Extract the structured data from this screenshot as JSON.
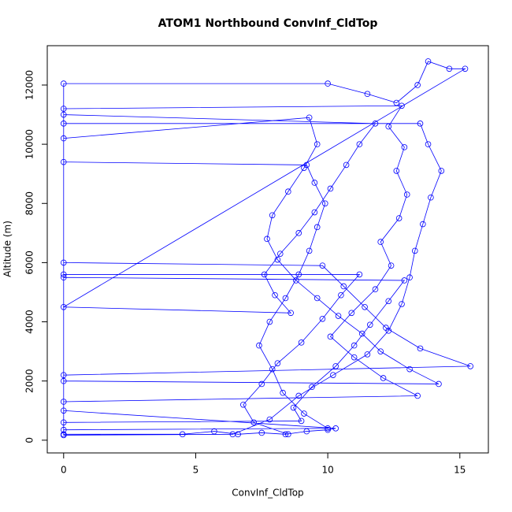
{
  "chart_data": {
    "type": "line",
    "title": "ATOM1 Northbound ConvInf_CldTop",
    "x_label": "ConvInf_CldTop",
    "y_label": "Altitude (m)",
    "color": "#0000ff",
    "markers": true,
    "xlim": [
      -0.62,
      16.08
    ],
    "ylim": [
      -430,
      13330
    ],
    "xticks": [
      0,
      5,
      10,
      15
    ],
    "yticks": [
      0,
      2000,
      4000,
      6000,
      8000,
      10000,
      12000
    ],
    "x": [
      8.5,
      7.2,
      6.8,
      7.5,
      8.1,
      9.0,
      9.8,
      10.5,
      11.2,
      0,
      0,
      6.4,
      7.8,
      8.9,
      10.2,
      11.5,
      12.3,
      12.8,
      13.1,
      13.3,
      13.6,
      13.9,
      14.3,
      13.8,
      13.5,
      0,
      0,
      10.0,
      9.1,
      8.3,
      7.9,
      7.4,
      7.8,
      8.4,
      8.9,
      9.3,
      9.6,
      9.9,
      9.5,
      9.2,
      0,
      0,
      13.4,
      12.1,
      11.0,
      10.1,
      10.9,
      11.8,
      12.4,
      12.0,
      12.7,
      13.0,
      12.6,
      12.9,
      12.3,
      12.8,
      0,
      0,
      15.4,
      13.5,
      12.2,
      11.4,
      10.6,
      9.8,
      0,
      0,
      9.0,
      8.7,
      9.4,
      10.3,
      11.0,
      11.6,
      12.3,
      12.9,
      0,
      0,
      10.0,
      11.5,
      12.6,
      13.4,
      13.8,
      14.6,
      15.2,
      0,
      8.6,
      8.0,
      7.6,
      8.2,
      8.9,
      9.5,
      10.1,
      10.7,
      11.2,
      11.8,
      0,
      0,
      14.2,
      13.1,
      12.0,
      11.3,
      10.4,
      9.6,
      8.8,
      8.1,
      7.7,
      7.9,
      8.5,
      9.1,
      9.6,
      9.3,
      0,
      0,
      4.5,
      5.7,
      6.6,
      7.5,
      8.4,
      9.2,
      10.0,
      10.3,
      0
    ],
    "values": [
      200,
      600,
      1200,
      1900,
      2600,
      3300,
      4100,
      4900,
      5600,
      5600,
      170,
      200,
      700,
      1500,
      2200,
      2900,
      3700,
      4600,
      5500,
      6400,
      7300,
      8200,
      9100,
      10000,
      10700,
      10700,
      350,
      400,
      900,
      1600,
      2400,
      3200,
      4000,
      4800,
      5600,
      6400,
      7200,
      8000,
      8700,
      9300,
      9400,
      1300,
      1500,
      2100,
      2800,
      3500,
      4300,
      5100,
      5900,
      6700,
      7500,
      8300,
      9100,
      9900,
      10600,
      11300,
      11200,
      2200,
      2500,
      3100,
      3800,
      4500,
      5200,
      5900,
      6000,
      600,
      650,
      1100,
      1800,
      2500,
      3200,
      3900,
      4700,
      5400,
      5500,
      12050,
      12050,
      11700,
      11400,
      12000,
      12800,
      12550,
      12550,
      4500,
      4300,
      4900,
      5600,
      6300,
      7000,
      7700,
      8500,
      9300,
      10000,
      10700,
      11000,
      2000,
      1900,
      2400,
      3000,
      3600,
      4200,
      4800,
      5400,
      6100,
      6800,
      7600,
      8400,
      9200,
      10000,
      10900,
      10200,
      200,
      200,
      300,
      200,
      250,
      200,
      300,
      350,
      400,
      1000
    ]
  }
}
